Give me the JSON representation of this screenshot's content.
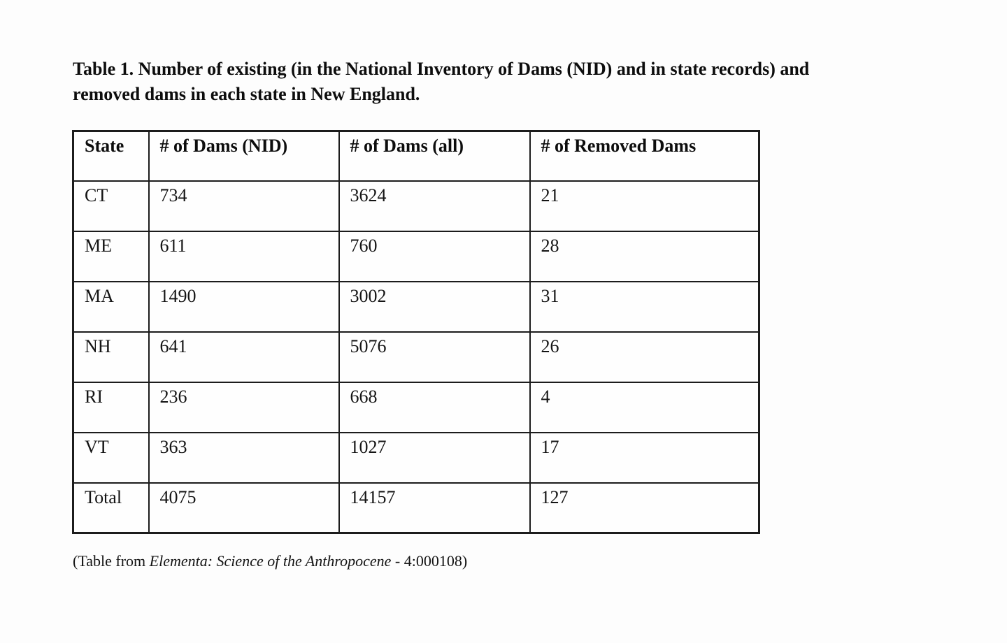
{
  "page": {
    "title_line1": "Table 1. Number of existing (in the National Inventory of Dams (NID) and in state records) and",
    "title_line2": "removed dams in each state in New England.",
    "title_full": "Table 1. Number of existing (in the National Inventory of Dams (NID) and in state records) and removed dams in each state in New England.",
    "caption_prefix": "(Table from ",
    "caption_journal": "Elementa: Science of the Anthropocene",
    "caption_suffix": " - 4:000108)"
  },
  "table": {
    "columns": [
      "State",
      "# of Dams (NID)",
      "# of Dams (all)",
      "# of Removed Dams"
    ],
    "rows": [
      [
        "CT",
        "734",
        "3624",
        "21"
      ],
      [
        "ME",
        "611",
        "760",
        "28"
      ],
      [
        "MA",
        "1490",
        "3002",
        "31"
      ],
      [
        "NH",
        "641",
        "5076",
        "26"
      ],
      [
        "RI",
        "236",
        "668",
        "4"
      ],
      [
        "VT",
        "363",
        "1027",
        "17"
      ],
      [
        "Total",
        "4075",
        "14157",
        "127"
      ]
    ]
  },
  "colors": {
    "text": "#0f0f0f",
    "border": "#1c1c1c",
    "background": "#fdfdfd"
  }
}
